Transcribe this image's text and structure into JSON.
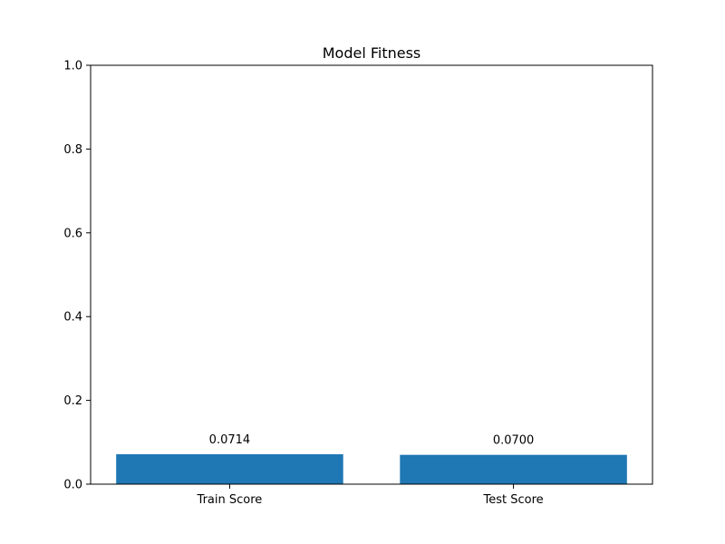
{
  "chart_data": {
    "type": "bar",
    "title": "Model Fitness",
    "xlabel": "",
    "ylabel": "",
    "categories": [
      "Train Score",
      "Test Score"
    ],
    "values": [
      0.0714,
      0.07
    ],
    "value_labels": [
      "0.0714",
      "0.0700"
    ],
    "ylim": [
      0,
      1.0
    ],
    "yticks": [
      0.0,
      0.2,
      0.4,
      0.6,
      0.8,
      1.0
    ],
    "ytick_labels": [
      "0.0",
      "0.2",
      "0.4",
      "0.6",
      "0.8",
      "1.0"
    ],
    "bar_color": "#1f77b4",
    "grid": false,
    "legend": "none"
  }
}
